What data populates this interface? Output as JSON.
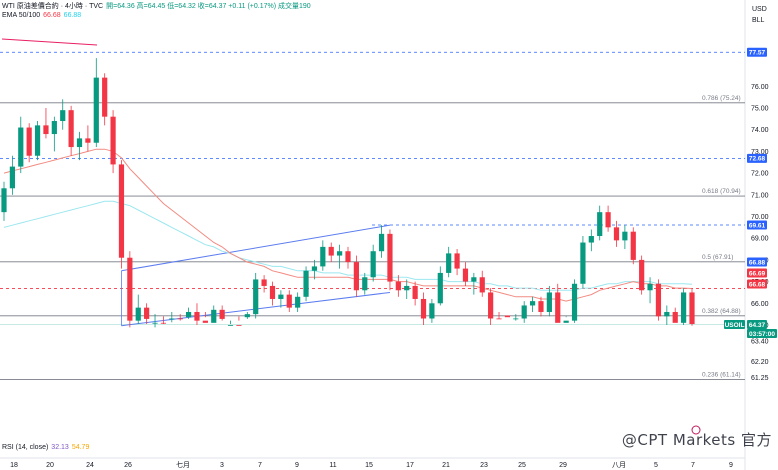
{
  "header": {
    "symbol": "WTI 原油差價合約 · 4小時 · TVC",
    "ohlc": "開=64.36 高=64.45 低=64.32 收=64.37 +0.11 (+0.17%) 成交量190",
    "ema_label": "EMA 50/100",
    "ema50": "66.68",
    "ema100": "66.88",
    "rsi_label": "RSI (14, close)",
    "rsi_a": "32.13",
    "rsi_b": "54.79"
  },
  "axis": {
    "currency": "USD",
    "unit": "BLL"
  },
  "watermark": "@CPT Markets 官方",
  "chart_data": {
    "type": "candlestick",
    "title": "WTI 原油差價合約 · 4小時 · TVC",
    "y_ticks": [
      76.0,
      75.0,
      74.0,
      73.0,
      72.0,
      71.0,
      70.0,
      69.0,
      68.0,
      67.0,
      66.0,
      65.0,
      63.4,
      62.2,
      61.25
    ],
    "y_tick_labels": [
      "76.00",
      "75.00",
      "74.00",
      "73.00",
      "72.00",
      "71.00",
      "70.00",
      "69.00",
      "68.00",
      "67.00",
      "66.00",
      "65.00",
      "63.40",
      "62.20",
      "61.25"
    ],
    "x_tick_labels": [
      "18",
      "20",
      "24",
      "26",
      "七月",
      "3",
      "7",
      "9",
      "11",
      "15",
      "17",
      "21",
      "23",
      "25",
      "29",
      "八月",
      "5",
      "7",
      "9"
    ],
    "fibonacci": [
      {
        "ratio": "0.786",
        "price": 75.24,
        "label": "0.786 (75.24)"
      },
      {
        "ratio": "0.618",
        "price": 70.94,
        "label": "0.618 (70.94)"
      },
      {
        "ratio": "0.5",
        "price": 67.91,
        "label": "0.5 (67.91)"
      },
      {
        "ratio": "0.382",
        "price": 64.88,
        "label": "0.382 (64.88)"
      },
      {
        "ratio": "0.236",
        "price": 61.14,
        "label": "0.236 (61.14)"
      }
    ],
    "price_tags": [
      {
        "label": "77.57",
        "value": 77.57,
        "color": "#2962ff"
      },
      {
        "label": "72.68",
        "value": 72.68,
        "color": "#2962ff"
      },
      {
        "label": "69.61",
        "value": 69.61,
        "color": "#2962ff"
      },
      {
        "label": "66.88",
        "value": 66.88,
        "color": "#2962ff"
      },
      {
        "label": "66.69",
        "value": 66.69,
        "color": "#f23645"
      },
      {
        "label": "66.68",
        "value": 66.68,
        "color": "#f23645"
      },
      {
        "label": "USOIL",
        "value": 64.37,
        "color": "#089981"
      },
      {
        "label": "64.37",
        "value": 64.37,
        "color": "#089981"
      },
      {
        "label": "03:57:00",
        "value": 64.37,
        "color": "#089981"
      }
    ],
    "candles": [
      [
        70.2,
        71.6,
        69.8,
        71.3
      ],
      [
        71.3,
        72.8,
        71.0,
        72.3
      ],
      [
        72.3,
        74.6,
        72.0,
        74.1
      ],
      [
        74.1,
        74.3,
        72.5,
        72.8
      ],
      [
        72.8,
        74.4,
        72.6,
        74.2
      ],
      [
        74.2,
        75.0,
        73.6,
        73.8
      ],
      [
        73.8,
        74.6,
        73.0,
        74.4
      ],
      [
        74.4,
        75.4,
        74.0,
        74.9
      ],
      [
        74.9,
        75.1,
        72.8,
        73.2
      ],
      [
        73.2,
        73.9,
        72.6,
        73.6
      ],
      [
        73.6,
        74.2,
        73.0,
        73.4
      ],
      [
        73.4,
        77.3,
        73.2,
        76.4
      ],
      [
        76.4,
        76.6,
        74.2,
        74.6
      ],
      [
        74.6,
        74.9,
        72.0,
        72.4
      ],
      [
        72.4,
        72.6,
        67.6,
        68.1
      ],
      [
        68.1,
        68.4,
        64.2,
        65.2
      ],
      [
        65.2,
        66.4,
        64.4,
        65.8
      ],
      [
        65.8,
        66.0,
        64.4,
        64.7
      ],
      [
        64.7,
        65.5,
        64.2,
        65.1
      ],
      [
        65.1,
        65.4,
        64.4,
        64.9
      ],
      [
        64.9,
        65.6,
        64.5,
        65.3
      ],
      [
        65.3,
        65.5,
        64.6,
        64.8
      ],
      [
        64.8,
        65.8,
        64.7,
        65.6
      ],
      [
        65.6,
        66.0,
        65.0,
        65.2
      ],
      [
        65.2,
        65.6,
        64.8,
        65.1
      ],
      [
        65.1,
        65.9,
        64.9,
        65.7
      ],
      [
        65.7,
        65.9,
        64.6,
        64.7
      ],
      [
        64.7,
        65.2,
        64.4,
        65.0
      ],
      [
        65.0,
        65.4,
        64.6,
        64.8
      ],
      [
        64.8,
        65.6,
        64.7,
        65.5
      ],
      [
        65.5,
        67.4,
        65.3,
        67.1
      ],
      [
        67.1,
        67.3,
        66.5,
        66.8
      ],
      [
        66.8,
        67.0,
        65.9,
        66.2
      ],
      [
        66.2,
        66.6,
        65.8,
        66.4
      ],
      [
        66.4,
        66.6,
        65.6,
        65.8
      ],
      [
        65.8,
        66.5,
        65.6,
        66.3
      ],
      [
        66.3,
        67.7,
        66.1,
        67.5
      ],
      [
        67.5,
        68.0,
        67.1,
        67.7
      ],
      [
        67.7,
        68.9,
        67.5,
        68.6
      ],
      [
        68.6,
        68.8,
        67.9,
        68.2
      ],
      [
        68.2,
        68.7,
        67.6,
        68.4
      ],
      [
        68.4,
        68.6,
        67.6,
        67.9
      ],
      [
        67.9,
        68.2,
        66.3,
        66.6
      ],
      [
        66.6,
        67.4,
        66.4,
        67.2
      ],
      [
        67.2,
        68.7,
        67.0,
        68.4
      ],
      [
        68.4,
        69.6,
        68.1,
        69.2
      ],
      [
        69.2,
        69.4,
        66.6,
        67.0
      ],
      [
        67.0,
        67.3,
        66.3,
        66.6
      ],
      [
        66.6,
        67.1,
        66.2,
        66.8
      ],
      [
        66.8,
        67.0,
        65.9,
        66.2
      ],
      [
        66.2,
        66.5,
        65.0,
        65.3
      ],
      [
        65.3,
        66.2,
        65.1,
        66.0
      ],
      [
        66.0,
        67.7,
        65.9,
        67.4
      ],
      [
        67.4,
        68.6,
        67.2,
        68.3
      ],
      [
        68.3,
        68.5,
        67.3,
        67.6
      ],
      [
        67.6,
        67.9,
        66.8,
        67.0
      ],
      [
        67.0,
        67.4,
        66.4,
        67.2
      ],
      [
        67.2,
        67.5,
        66.3,
        66.5
      ],
      [
        66.5,
        66.7,
        65.0,
        65.3
      ],
      [
        65.3,
        65.6,
        64.7,
        64.9
      ],
      [
        64.9,
        65.2,
        64.6,
        64.8
      ],
      [
        64.8,
        65.5,
        64.6,
        65.3
      ],
      [
        65.3,
        66.1,
        65.1,
        65.9
      ],
      [
        65.9,
        66.3,
        65.6,
        66.1
      ],
      [
        66.1,
        66.3,
        65.4,
        65.6
      ],
      [
        65.6,
        66.8,
        65.4,
        66.5
      ],
      [
        66.5,
        66.9,
        64.9,
        65.1
      ],
      [
        65.1,
        65.4,
        64.8,
        65.2
      ],
      [
        65.2,
        67.1,
        65.1,
        66.9
      ],
      [
        66.9,
        69.1,
        66.7,
        68.8
      ],
      [
        68.8,
        69.4,
        68.4,
        69.1
      ],
      [
        69.1,
        70.5,
        68.9,
        70.2
      ],
      [
        70.2,
        70.5,
        69.3,
        69.5
      ],
      [
        69.5,
        69.8,
        68.6,
        68.9
      ],
      [
        68.9,
        69.6,
        68.5,
        69.3
      ],
      [
        69.3,
        69.5,
        67.8,
        68.0
      ],
      [
        68.0,
        68.2,
        66.4,
        66.6
      ],
      [
        66.6,
        67.2,
        66.0,
        66.9
      ],
      [
        66.9,
        67.1,
        65.2,
        65.4
      ],
      [
        65.4,
        65.9,
        65.0,
        65.6
      ],
      [
        65.6,
        65.8,
        64.9,
        65.1
      ],
      [
        65.1,
        66.7,
        65.0,
        66.5
      ],
      [
        66.5,
        66.7,
        64.3,
        64.4
      ]
    ],
    "ema50": [
      72.0,
      72.1,
      72.2,
      72.3,
      72.4,
      72.5,
      72.6,
      72.7,
      72.8,
      72.9,
      73.0,
      73.1,
      73.1,
      73.0,
      72.7,
      72.2,
      71.8,
      71.4,
      71.0,
      70.6,
      70.3,
      70.0,
      69.7,
      69.4,
      69.1,
      68.8,
      68.6,
      68.3,
      68.1,
      67.9,
      67.8,
      67.7,
      67.5,
      67.4,
      67.3,
      67.2,
      67.2,
      67.2,
      67.2,
      67.2,
      67.2,
      67.2,
      67.1,
      67.1,
      67.1,
      67.1,
      67.1,
      67.0,
      67.0,
      66.9,
      66.8,
      66.8,
      66.8,
      66.8,
      66.8,
      66.8,
      66.8,
      66.7,
      66.6,
      66.5,
      66.4,
      66.3,
      66.3,
      66.3,
      66.2,
      66.2,
      66.2,
      66.1,
      66.2,
      66.3,
      66.4,
      66.6,
      66.7,
      66.8,
      66.9,
      67.0,
      66.9,
      66.9,
      66.8,
      66.8,
      66.7,
      66.7,
      66.68
    ],
    "ema100": [
      69.5,
      69.6,
      69.7,
      69.8,
      69.9,
      70.0,
      70.1,
      70.2,
      70.3,
      70.4,
      70.5,
      70.6,
      70.7,
      70.7,
      70.6,
      70.5,
      70.3,
      70.1,
      69.9,
      69.7,
      69.5,
      69.3,
      69.1,
      68.9,
      68.7,
      68.6,
      68.4,
      68.3,
      68.1,
      68.0,
      67.9,
      67.8,
      67.7,
      67.7,
      67.6,
      67.5,
      67.5,
      67.5,
      67.4,
      67.4,
      67.4,
      67.3,
      67.3,
      67.3,
      67.3,
      67.3,
      67.2,
      67.2,
      67.2,
      67.1,
      67.1,
      67.1,
      67.1,
      67.0,
      67.0,
      67.0,
      67.0,
      66.9,
      66.9,
      66.8,
      66.8,
      66.7,
      66.7,
      66.7,
      66.6,
      66.6,
      66.6,
      66.6,
      66.6,
      66.7,
      66.7,
      66.8,
      66.9,
      66.9,
      67.0,
      67.0,
      67.0,
      67.0,
      66.9,
      66.9,
      66.9,
      66.9,
      66.88
    ],
    "channel": {
      "upper": [
        [
          14,
          67.5
        ],
        [
          46,
          69.6
        ]
      ],
      "lower": [
        [
          14,
          64.3
        ],
        [
          46,
          66.5
        ]
      ]
    }
  }
}
